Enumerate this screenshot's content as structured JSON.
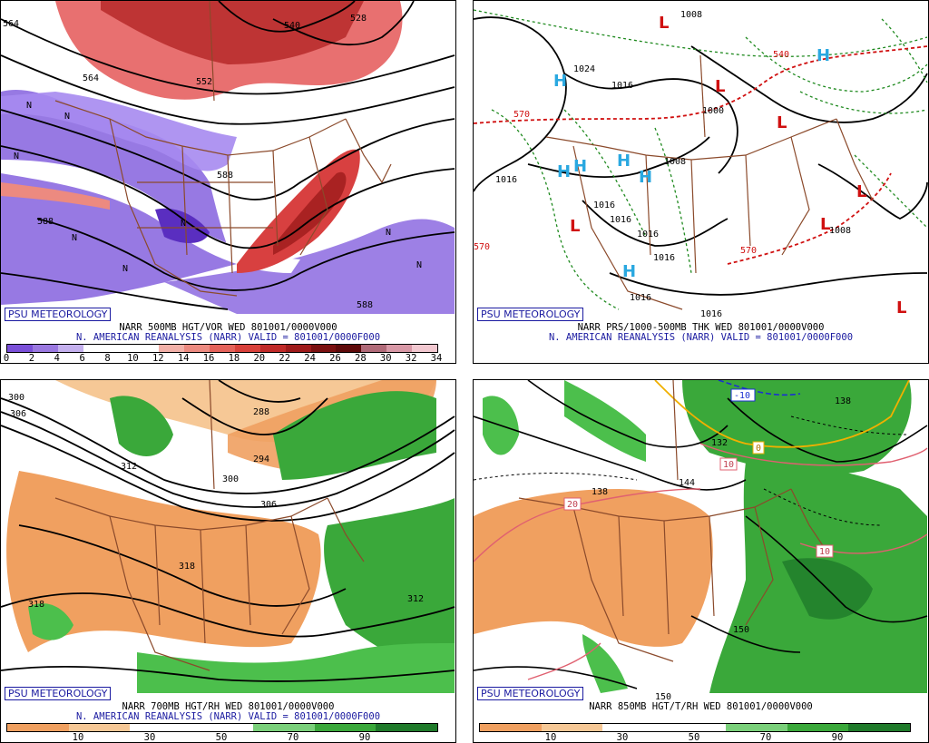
{
  "panels": [
    {
      "badge": "PSU METEOROLOGY",
      "caption1": "NARR 500MB HGT/VOR WED 801001/0000V000",
      "caption2": "N. AMERICAN REANALYSIS (NARR) VALID = 801001/0000F000",
      "map_labels": [
        "564",
        "540",
        "528",
        "552",
        "564",
        "588",
        "588",
        "588",
        "N",
        "N",
        "N",
        "N",
        "N",
        "N",
        "N",
        "N"
      ],
      "colorbar": {
        "ticks": [
          "0",
          "2",
          "4",
          "6",
          "8",
          "10",
          "12",
          "14",
          "16",
          "18",
          "20",
          "22",
          "24",
          "26",
          "28",
          "30",
          "32",
          "34"
        ],
        "colors": [
          "#7a4fd8",
          "#9a78e0",
          "#c4b0ee",
          "#ffffff",
          "#ffffff",
          "#ffffff",
          "#f2b0a8",
          "#ec8a80",
          "#e4625a",
          "#d8403a",
          "#c02a28",
          "#9e1a1a",
          "#7a1010",
          "#5e0a0a",
          "#b06a78",
          "#d898a6",
          "#f2c8d0"
        ]
      }
    },
    {
      "badge": "PSU METEOROLOGY",
      "caption1": "NARR PRS/1000-500MB THK WED 801001/0000V000",
      "caption2": "N. AMERICAN REANALYSIS (NARR) VALID = 801001/0000F000",
      "map_labels": [
        "1008",
        "1024",
        "1016",
        "1016",
        "1016",
        "1016",
        "1016",
        "1016",
        "1016",
        "1016",
        "1008",
        "1000",
        "1008",
        "570",
        "570",
        "570",
        "540",
        "H",
        "H",
        "H",
        "H",
        "H",
        "H",
        "H",
        "L",
        "L",
        "L",
        "L",
        "L",
        "L",
        "L"
      ]
    },
    {
      "badge": "PSU METEOROLOGY",
      "caption1": "NARR 700MB HGT/RH WED 801001/0000V000",
      "caption2": "N. AMERICAN REANALYSIS (NARR) VALID = 801001/0000F000",
      "map_labels": [
        "300",
        "306",
        "288",
        "294",
        "300",
        "306",
        "312",
        "318",
        "318",
        "312"
      ],
      "colorbar": {
        "ticks": [
          "10",
          "30",
          "50",
          "70",
          "90"
        ],
        "colors": [
          "#f0a060",
          "#f6c896",
          "#ffffff",
          "#ffffff",
          "#7ad07a",
          "#3aa83a",
          "#1f7a2a"
        ]
      }
    },
    {
      "badge": "PSU METEOROLOGY",
      "caption1": "NARR 850MB HGT/T/RH WED 801001/0000V000",
      "caption2": "",
      "map_labels": [
        "-10",
        "0",
        "10",
        "10",
        "20",
        "150",
        "132",
        "138",
        "144",
        "150",
        "138"
      ],
      "colorbar": {
        "ticks": [
          "10",
          "30",
          "50",
          "70",
          "90"
        ],
        "colors": [
          "#f0a060",
          "#f6c896",
          "#ffffff",
          "#ffffff",
          "#7ad07a",
          "#3aa83a",
          "#1f7a2a"
        ]
      }
    }
  ]
}
